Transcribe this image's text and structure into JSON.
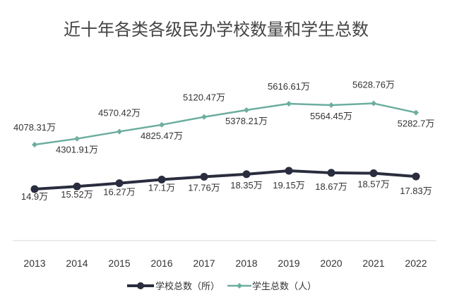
{
  "colors": {
    "school": "#2a2d3e",
    "student": "#6cae9f",
    "axis": "#d9d9d9",
    "text": "#333333"
  },
  "chart_data": {
    "type": "line",
    "title": "近十年各类各级民办学校数量和学生总数",
    "categories": [
      "2013",
      "2014",
      "2015",
      "2016",
      "2017",
      "2018",
      "2019",
      "2020",
      "2021",
      "2022"
    ],
    "series": [
      {
        "name": "学校总数（所）",
        "values": [
          14.9,
          15.52,
          16.27,
          17.1,
          17.76,
          18.35,
          19.15,
          18.67,
          18.57,
          17.83
        ],
        "labels": [
          "14.9万",
          "15.52万",
          "16.27万",
          "17.1万",
          "17.76万",
          "18.35万",
          "19.15万",
          "18.67万",
          "18.57万",
          "17.83万"
        ]
      },
      {
        "name": "学生总数（人）",
        "values": [
          4078.31,
          4301.91,
          4570.42,
          4825.47,
          5120.47,
          5378.21,
          5616.61,
          5564.45,
          5628.76,
          5282.7
        ],
        "labels": [
          "4078.31万",
          "4301.91万",
          "4570.42万",
          "4825.47万",
          "5120.47万",
          "5378.21万",
          "5616.61万",
          "5564.45万",
          "5628.76万",
          "5282.7万"
        ]
      }
    ],
    "legend": "bottom"
  }
}
